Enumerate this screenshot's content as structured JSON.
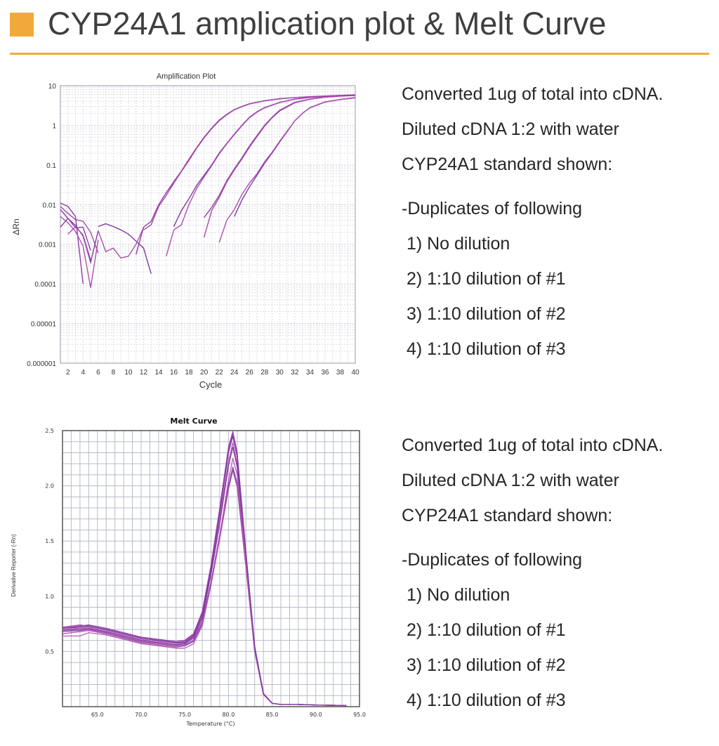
{
  "slide": {
    "title": "CYP24A1 amplication plot & Melt Curve",
    "accent_color": "#f2a93b",
    "notes_top": [
      "Converted 1ug of total into cDNA.",
      "Diluted cDNA 1:2 with water",
      "CYP24A1 standard shown:",
      "-Duplicates of following",
      " 1) No dilution",
      " 2) 1:10 dilution of #1",
      " 3) 1:10 dilution of #2",
      " 4) 1:10 dilution of #3"
    ],
    "notes_bottom": [
      "Converted 1ug of total into cDNA.",
      "Diluted cDNA 1:2 with water",
      "CYP24A1 standard shown:",
      "-Duplicates of following",
      " 1) No dilution",
      " 2) 1:10 dilution of #1",
      " 3) 1:10 dilution of #2",
      " 4) 1:10 dilution of #3"
    ]
  },
  "chart_data": [
    {
      "type": "line",
      "title": "Amplification Plot",
      "xlabel": "Cycle",
      "ylabel": "ΔRn",
      "xlim": [
        1,
        40
      ],
      "ylim": [
        1e-06,
        10
      ],
      "yscale": "log",
      "grid": true,
      "xticks": [
        "2",
        "4",
        "6",
        "8",
        "10",
        "12",
        "14",
        "16",
        "18",
        "20",
        "22",
        "24",
        "26",
        "28",
        "30",
        "32",
        "34",
        "36",
        "38",
        "40"
      ],
      "yticks": [
        "0.000001",
        "0.00001",
        "0.0001",
        "0.001",
        "0.01",
        "0.1",
        "1",
        "10"
      ],
      "line_color": "#8e3fa6",
      "series": [
        {
          "points": [
            [
              1,
              0.011
            ],
            [
              2,
              0.009
            ],
            [
              3,
              0.005
            ],
            [
              4,
              0.0001
            ]
          ]
        },
        {
          "points": [
            [
              1,
              0.009
            ],
            [
              2,
              0.006
            ],
            [
              3,
              0.0042
            ],
            [
              4,
              0.0038
            ],
            [
              5,
              0.002
            ],
            [
              6,
              0.0006
            ]
          ]
        },
        {
          "points": [
            [
              1,
              0.0075
            ],
            [
              2,
              0.0045
            ],
            [
              3,
              0.003
            ],
            [
              4,
              0.0016
            ],
            [
              5,
              0.00035
            ],
            [
              6,
              0.0022
            ]
          ]
        },
        {
          "points": [
            [
              1,
              0.005
            ],
            [
              2,
              0.0035
            ],
            [
              3,
              0.0021
            ],
            [
              4,
              0.0009
            ],
            [
              5,
              8e-05
            ],
            [
              6,
              0.0013
            ]
          ]
        },
        {
          "points": [
            [
              1,
              0.0027
            ],
            [
              2,
              0.0045
            ],
            [
              3,
              0.0026
            ],
            [
              4,
              0.0027
            ],
            [
              5,
              0.0007
            ]
          ]
        },
        {
          "points": [
            [
              2,
              0.0018
            ],
            [
              3,
              0.0028
            ],
            [
              4,
              0.0017
            ],
            [
              5,
              0.0004
            ]
          ]
        },
        {
          "points": [
            [
              6,
              0.0028
            ],
            [
              7,
              0.0033
            ],
            [
              8,
              0.0028
            ],
            [
              9,
              0.0023
            ],
            [
              10,
              0.0018
            ],
            [
              11,
              0.0012
            ],
            [
              12,
              0.0008
            ],
            [
              13,
              0.00018
            ]
          ]
        },
        {
          "points": [
            [
              6,
              0.0022
            ],
            [
              7,
              0.00065
            ],
            [
              8,
              0.0008
            ],
            [
              9,
              0.00045
            ],
            [
              10,
              0.0005
            ],
            [
              11,
              0.001
            ],
            [
              12,
              0.0026
            ]
          ]
        },
        {
          "points": [
            [
              11,
              0.00055
            ],
            [
              12,
              0.0027
            ],
            [
              13,
              0.0038
            ],
            [
              14,
              0.01
            ],
            [
              15,
              0.02
            ],
            [
              16,
              0.038
            ],
            [
              17,
              0.07
            ],
            [
              18,
              0.14
            ],
            [
              19,
              0.27
            ],
            [
              20,
              0.5
            ],
            [
              21,
              0.85
            ],
            [
              22,
              1.35
            ],
            [
              23,
              1.9
            ],
            [
              24,
              2.5
            ],
            [
              25,
              3.0
            ],
            [
              26,
              3.5
            ],
            [
              28,
              4.2
            ],
            [
              30,
              4.7
            ],
            [
              32,
              5.0
            ],
            [
              34,
              5.3
            ],
            [
              36,
              5.5
            ],
            [
              38,
              5.7
            ],
            [
              40,
              5.9
            ]
          ]
        },
        {
          "points": [
            [
              12,
              0.0023
            ],
            [
              13,
              0.0031
            ],
            [
              14,
              0.009
            ],
            [
              15,
              0.017
            ],
            [
              16,
              0.035
            ],
            [
              17,
              0.068
            ],
            [
              18,
              0.13
            ],
            [
              19,
              0.26
            ],
            [
              20,
              0.48
            ],
            [
              21,
              0.82
            ],
            [
              22,
              1.3
            ],
            [
              23,
              1.85
            ],
            [
              24,
              2.45
            ],
            [
              25,
              2.95
            ],
            [
              26,
              3.45
            ],
            [
              28,
              4.15
            ],
            [
              30,
              4.65
            ],
            [
              32,
              5.0
            ],
            [
              34,
              5.25
            ],
            [
              36,
              5.45
            ],
            [
              38,
              5.65
            ],
            [
              40,
              5.85
            ]
          ]
        },
        {
          "points": [
            [
              16,
              0.0028
            ],
            [
              17,
              0.007
            ],
            [
              18,
              0.014
            ],
            [
              19,
              0.03
            ],
            [
              20,
              0.055
            ],
            [
              21,
              0.1
            ],
            [
              22,
              0.2
            ],
            [
              23,
              0.35
            ],
            [
              24,
              0.6
            ],
            [
              25,
              1.0
            ],
            [
              26,
              1.6
            ],
            [
              27,
              2.2
            ],
            [
              28,
              2.8
            ],
            [
              30,
              3.8
            ],
            [
              32,
              4.6
            ],
            [
              34,
              5.1
            ],
            [
              36,
              5.4
            ],
            [
              38,
              5.6
            ],
            [
              40,
              5.8
            ]
          ]
        },
        {
          "points": [
            [
              15,
              0.0005
            ],
            [
              16,
              0.0023
            ],
            [
              17,
              0.0031
            ],
            [
              18,
              0.01
            ],
            [
              19,
              0.025
            ],
            [
              20,
              0.05
            ],
            [
              21,
              0.095
            ],
            [
              22,
              0.19
            ],
            [
              23,
              0.34
            ],
            [
              24,
              0.58
            ],
            [
              25,
              0.97
            ],
            [
              26,
              1.55
            ],
            [
              27,
              2.15
            ],
            [
              28,
              2.75
            ],
            [
              30,
              3.75
            ],
            [
              32,
              4.55
            ],
            [
              34,
              5.05
            ],
            [
              36,
              5.35
            ],
            [
              38,
              5.55
            ],
            [
              40,
              5.75
            ]
          ]
        },
        {
          "points": [
            [
              20,
              0.0047
            ],
            [
              21,
              0.0085
            ],
            [
              22,
              0.017
            ],
            [
              23,
              0.04
            ],
            [
              24,
              0.08
            ],
            [
              25,
              0.15
            ],
            [
              26,
              0.3
            ],
            [
              27,
              0.55
            ],
            [
              28,
              1.0
            ],
            [
              29,
              1.6
            ],
            [
              30,
              2.4
            ],
            [
              32,
              3.8
            ],
            [
              34,
              4.6
            ],
            [
              36,
              5.2
            ],
            [
              38,
              5.5
            ],
            [
              40,
              5.7
            ]
          ]
        },
        {
          "points": [
            [
              20,
              0.0015
            ],
            [
              21,
              0.007
            ],
            [
              22,
              0.015
            ],
            [
              23,
              0.037
            ],
            [
              24,
              0.075
            ],
            [
              25,
              0.14
            ],
            [
              26,
              0.28
            ],
            [
              27,
              0.52
            ],
            [
              28,
              0.95
            ],
            [
              29,
              1.55
            ],
            [
              30,
              2.3
            ],
            [
              32,
              3.7
            ],
            [
              34,
              4.55
            ],
            [
              36,
              5.15
            ],
            [
              38,
              5.45
            ],
            [
              40,
              5.65
            ]
          ]
        },
        {
          "points": [
            [
              24,
              0.005
            ],
            [
              25,
              0.013
            ],
            [
              26,
              0.028
            ],
            [
              27,
              0.055
            ],
            [
              28,
              0.11
            ],
            [
              29,
              0.2
            ],
            [
              30,
              0.38
            ],
            [
              31,
              0.7
            ],
            [
              32,
              1.3
            ],
            [
              33,
              2.0
            ],
            [
              34,
              2.8
            ],
            [
              36,
              3.9
            ],
            [
              38,
              4.5
            ],
            [
              40,
              5.0
            ]
          ]
        },
        {
          "points": [
            [
              22,
              0.0011
            ],
            [
              23,
              0.004
            ],
            [
              24,
              0.0075
            ],
            [
              25,
              0.018
            ],
            [
              26,
              0.035
            ],
            [
              27,
              0.06
            ],
            [
              28,
              0.12
            ],
            [
              29,
              0.21
            ],
            [
              30,
              0.4
            ],
            [
              31,
              0.72
            ],
            [
              32,
              1.3
            ],
            [
              33,
              2.0
            ],
            [
              34,
              2.75
            ],
            [
              36,
              3.85
            ],
            [
              38,
              4.45
            ],
            [
              40,
              4.9
            ]
          ]
        }
      ]
    },
    {
      "type": "line",
      "title": "Melt Curve",
      "xlabel": "Temperature (°C)",
      "ylabel": "Derivative Reporter (-Rn)",
      "xlim": [
        61,
        95
      ],
      "ylim": [
        0,
        2.5
      ],
      "grid": true,
      "xticks": [
        "65.0",
        "70.0",
        "75.0",
        "80.0",
        "85.0",
        "90.0",
        "95.0"
      ],
      "yticks": [
        "0.5",
        "1.0",
        "1.5",
        "2.0",
        "2.5"
      ],
      "line_color": "#9b3fae",
      "x": [
        61,
        63,
        64,
        66,
        68,
        70,
        72,
        74,
        75,
        76,
        77,
        78,
        79,
        80,
        80.5,
        81,
        82,
        83,
        84,
        85,
        86,
        88,
        90,
        93.5
      ],
      "series": [
        {
          "values": [
            0.71,
            0.73,
            0.74,
            0.71,
            0.67,
            0.63,
            0.61,
            0.59,
            0.6,
            0.66,
            0.86,
            1.28,
            1.8,
            2.35,
            2.49,
            2.3,
            1.4,
            0.55,
            0.12,
            0.03,
            0.02,
            0.02,
            0.015,
            0.01
          ]
        },
        {
          "values": [
            0.72,
            0.74,
            0.73,
            0.7,
            0.66,
            0.62,
            0.6,
            0.58,
            0.59,
            0.65,
            0.85,
            1.27,
            1.78,
            2.33,
            2.47,
            2.28,
            1.38,
            0.54,
            0.12,
            0.03,
            0.02,
            0.02,
            0.015,
            0.01
          ]
        },
        {
          "values": [
            0.7,
            0.71,
            0.72,
            0.69,
            0.65,
            0.61,
            0.59,
            0.57,
            0.58,
            0.63,
            0.82,
            1.22,
            1.7,
            2.22,
            2.39,
            2.2,
            1.35,
            0.53,
            0.11,
            0.03,
            0.02,
            0.02,
            0.015,
            0.01
          ]
        },
        {
          "values": [
            0.69,
            0.7,
            0.71,
            0.68,
            0.64,
            0.6,
            0.58,
            0.56,
            0.57,
            0.62,
            0.8,
            1.2,
            1.66,
            2.18,
            2.35,
            2.17,
            1.33,
            0.52,
            0.11,
            0.03,
            0.02,
            0.02,
            0.015,
            0.01
          ]
        },
        {
          "values": [
            0.68,
            0.69,
            0.7,
            0.67,
            0.63,
            0.59,
            0.57,
            0.55,
            0.56,
            0.6,
            0.77,
            1.13,
            1.56,
            2.0,
            2.17,
            2.02,
            1.28,
            0.5,
            0.11,
            0.03,
            0.02,
            0.02,
            0.015,
            0.01
          ]
        },
        {
          "values": [
            0.66,
            0.68,
            0.69,
            0.66,
            0.62,
            0.58,
            0.56,
            0.54,
            0.55,
            0.59,
            0.75,
            1.1,
            1.52,
            1.97,
            2.14,
            1.99,
            1.26,
            0.5,
            0.11,
            0.03,
            0.02,
            0.02,
            0.015,
            0.01
          ]
        },
        {
          "values": [
            0.64,
            0.64,
            0.67,
            0.65,
            0.61,
            0.57,
            0.55,
            0.53,
            0.53,
            0.57,
            0.73,
            1.1,
            1.55,
            2.05,
            2.25,
            2.1,
            1.3,
            0.51,
            0.11,
            0.03,
            0.02,
            0.02,
            0.015,
            0.01
          ]
        },
        {
          "values": [
            0.71,
            0.72,
            0.73,
            0.7,
            0.66,
            0.62,
            0.6,
            0.58,
            0.58,
            0.64,
            0.84,
            1.25,
            1.75,
            2.3,
            2.45,
            2.26,
            1.37,
            0.54,
            0.12,
            0.03,
            0.02,
            0.02,
            0.015,
            0.01
          ]
        }
      ]
    }
  ]
}
